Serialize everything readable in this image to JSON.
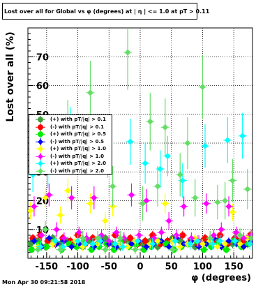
{
  "chart_data": {
    "type": "scatter",
    "title": "Lost over all for Global vs φ (degrees) at | η | <= 1.0 at pT > 0.11",
    "xlabel": "φ (degrees)",
    "ylabel": "Lost over all (%)",
    "xlim": [
      -180,
      180
    ],
    "ylim": [
      0,
      80
    ],
    "xticks": [
      -150,
      -100,
      -50,
      0,
      50,
      100,
      150
    ],
    "yticks": [
      10,
      20,
      30,
      40,
      50,
      60,
      70
    ],
    "grid": true,
    "legend_position": "left-middle",
    "series": [
      {
        "name": "(+) with pT/|q| > 0.1",
        "color": "#3e9e3e",
        "marker": "circle",
        "x": [
          -176,
          -164,
          -152,
          -140,
          -128,
          -116,
          -104,
          -92,
          -80,
          -68,
          -56,
          -44,
          -32,
          -20,
          -8,
          4,
          16,
          28,
          40,
          52,
          64,
          76,
          88,
          100,
          112,
          124,
          136,
          148,
          160,
          172
        ],
        "y": [
          5,
          6,
          4,
          7,
          5,
          6,
          5,
          4,
          6,
          5,
          7,
          5,
          4,
          6,
          5,
          5,
          6,
          4,
          5,
          7,
          6,
          5,
          4,
          6,
          5,
          6,
          4,
          5,
          6,
          5
        ],
        "err": [
          1.5,
          1.5,
          1.5,
          1.5,
          1.5,
          1.5,
          1.5,
          1.5,
          1.5,
          1.5,
          1.5,
          1.5,
          1.5,
          1.5,
          1.5,
          1.5,
          1.5,
          1.5,
          1.5,
          1.5,
          1.5,
          1.5,
          1.5,
          1.5,
          1.5,
          1.5,
          1.5,
          1.5,
          1.5,
          1.5
        ]
      },
      {
        "name": "(-) with pT/|q| > 0.1",
        "color": "#ff0000",
        "marker": "circle",
        "x": [
          -172,
          -160,
          -148,
          -136,
          -124,
          -112,
          -100,
          -88,
          -76,
          -64,
          -52,
          -40,
          -28,
          -16,
          -4,
          8,
          20,
          32,
          44,
          56,
          68,
          80,
          92,
          104,
          116,
          128,
          140,
          152,
          164,
          176
        ],
        "y": [
          7,
          8,
          6,
          5,
          7,
          6,
          8,
          5,
          7,
          6,
          5,
          8,
          6,
          7,
          5,
          6,
          8,
          5,
          6,
          7,
          8,
          6,
          5,
          7,
          6,
          8,
          5,
          7,
          6,
          8
        ],
        "err": [
          1.5,
          1.5,
          1.5,
          1.5,
          1.5,
          1.5,
          1.5,
          1.5,
          1.5,
          1.5,
          1.5,
          1.5,
          1.5,
          1.5,
          1.5,
          1.5,
          1.5,
          1.5,
          1.5,
          1.5,
          1.5,
          1.5,
          1.5,
          1.5,
          1.5,
          1.5,
          1.5,
          1.5,
          1.5,
          1.5
        ]
      },
      {
        "name": "(+) with pT/|q| > 0.5",
        "color": "#00ee00",
        "marker": "circle",
        "x": [
          -174,
          -162,
          -150,
          -138,
          -126,
          -114,
          -102,
          -90,
          -78,
          -66,
          -54,
          -42,
          -30,
          -18,
          -6,
          6,
          18,
          30,
          42,
          54,
          66,
          78,
          90,
          102,
          114,
          126,
          138,
          150,
          162,
          174
        ],
        "y": [
          3,
          5,
          4,
          6,
          3,
          5,
          4,
          6,
          3,
          4,
          5,
          3,
          6,
          4,
          5,
          3,
          4,
          6,
          5,
          3,
          4,
          5,
          6,
          3,
          4,
          5,
          3,
          6,
          4,
          5
        ],
        "err": [
          1.2,
          1.2,
          1.2,
          1.2,
          1.2,
          1.2,
          1.2,
          1.2,
          1.2,
          1.2,
          1.2,
          1.2,
          1.2,
          1.2,
          1.2,
          1.2,
          1.2,
          1.2,
          1.2,
          1.2,
          1.2,
          1.2,
          1.2,
          1.2,
          1.2,
          1.2,
          1.2,
          1.2,
          1.2,
          1.2
        ]
      },
      {
        "name": "(-) with pT/|q| > 0.5",
        "color": "#0000ff",
        "marker": "diamond",
        "x": [
          -170,
          -158,
          -146,
          -134,
          -122,
          -110,
          -98,
          -86,
          -74,
          -62,
          -50,
          -38,
          -26,
          -14,
          -2,
          10,
          22,
          34,
          46,
          58,
          70,
          82,
          94,
          106,
          118,
          130,
          142,
          154,
          166,
          178
        ],
        "y": [
          6,
          4,
          7,
          5,
          6,
          4,
          5,
          7,
          4,
          6,
          5,
          4,
          7,
          5,
          6,
          4,
          5,
          6,
          4,
          7,
          5,
          6,
          4,
          5,
          7,
          4,
          6,
          5,
          4,
          6
        ],
        "err": [
          1.2,
          1.2,
          1.2,
          1.2,
          1.2,
          1.2,
          1.2,
          1.2,
          1.2,
          1.2,
          1.2,
          1.2,
          1.2,
          1.2,
          1.2,
          1.2,
          1.2,
          1.2,
          1.2,
          1.2,
          1.2,
          1.2,
          1.2,
          1.2,
          1.2,
          1.2,
          1.2,
          1.2,
          1.2,
          1.2
        ]
      },
      {
        "name": "(+) with pT/|q| > 1.0",
        "color": "#ffff00",
        "marker": "diamond",
        "x": [
          -176,
          -164,
          -152,
          -140,
          -128,
          -116,
          -104,
          -92,
          -80,
          -68,
          -56,
          -44,
          -32,
          -20,
          -8,
          4,
          16,
          28,
          40,
          52,
          64,
          76,
          88,
          100,
          112,
          124,
          136,
          148,
          160,
          172
        ],
        "y": [
          16.5,
          4,
          21,
          5,
          15,
          23.5,
          6,
          4,
          19,
          5,
          13,
          18,
          5,
          4,
          6,
          19,
          5,
          6,
          19,
          6,
          4,
          5,
          7,
          5,
          6,
          4,
          5,
          16,
          5,
          7
        ],
        "err": [
          3,
          1.5,
          3.5,
          1.5,
          3,
          4,
          1.5,
          1.5,
          3.5,
          1.5,
          3,
          3.5,
          1.5,
          1.5,
          1.5,
          3.5,
          1.5,
          1.5,
          3.5,
          1.5,
          1.5,
          1.5,
          1.5,
          1.5,
          1.5,
          1.5,
          1.5,
          3,
          1.5,
          1.5
        ]
      },
      {
        "name": "(-) with pT/|q| > 1.0",
        "color": "#ff00ff",
        "marker": "diamond",
        "x": [
          -170,
          -158,
          -146,
          -134,
          -122,
          -110,
          -98,
          -86,
          -74,
          -62,
          -50,
          -38,
          -26,
          -14,
          -2,
          10,
          22,
          34,
          46,
          58,
          70,
          82,
          94,
          106,
          118,
          130,
          142,
          154,
          166,
          178
        ],
        "y": [
          18,
          8,
          22,
          10,
          7,
          21,
          9,
          7,
          21,
          8,
          6,
          9,
          7,
          22,
          8,
          20,
          7,
          9,
          13,
          8,
          18,
          7,
          6,
          19,
          8,
          10,
          18,
          9,
          7,
          8
        ],
        "err": [
          3.5,
          2,
          4,
          2.5,
          2,
          4,
          2,
          2,
          4,
          2,
          2,
          2,
          2,
          4,
          2,
          4,
          2,
          2,
          3,
          2,
          3.5,
          2,
          2,
          3.5,
          2,
          2.5,
          3.5,
          2,
          2,
          2
        ]
      },
      {
        "name": "(+) with pT/|q| > 2.0",
        "color": "#00ffff",
        "marker": "diamond",
        "x": [
          -172,
          -160,
          -148,
          -136,
          -124,
          -112,
          -100,
          -88,
          -76,
          -64,
          -52,
          -40,
          -28,
          -16,
          -4,
          8,
          20,
          32,
          44,
          56,
          68,
          80,
          92,
          104,
          116,
          128,
          140,
          152,
          164,
          176
        ],
        "y": [
          29,
          4,
          31,
          6,
          4,
          44.5,
          6,
          5,
          5,
          6,
          35,
          5,
          4,
          40.5,
          6,
          33,
          5,
          31,
          35.5,
          6,
          27,
          5,
          6,
          39,
          5,
          6,
          41,
          6,
          42.5,
          5
        ],
        "err": [
          6,
          1.5,
          6.5,
          2,
          1.5,
          8,
          2,
          2,
          2,
          2,
          7,
          2,
          1.5,
          8,
          2,
          7,
          2,
          6.5,
          7,
          2,
          6,
          2,
          2,
          7.5,
          2,
          2,
          8,
          2,
          8,
          2
        ]
      },
      {
        "name": "(-) with pT/|q| > 2.0",
        "color": "#66dd66",
        "marker": "diamond",
        "x": [
          -164,
          -152,
          -140,
          -128,
          -116,
          -104,
          -92,
          -80,
          -68,
          -56,
          -44,
          -32,
          -20,
          -8,
          4,
          16,
          28,
          40,
          52,
          64,
          76,
          88,
          100,
          112,
          124,
          136,
          148,
          160,
          172,
          178
        ],
        "y": [
          3,
          10,
          40,
          3,
          45,
          38,
          7,
          57.5,
          7,
          3,
          25,
          7,
          71.5,
          3,
          19,
          47.5,
          25,
          45.5,
          3,
          29,
          40,
          21,
          59.5,
          7,
          19.5,
          20,
          27,
          8,
          24,
          7
        ],
        "err": [
          1.5,
          3,
          9,
          1.5,
          10,
          9,
          2.5,
          11,
          2.5,
          1.5,
          7,
          2.5,
          13,
          1.5,
          6,
          10,
          7,
          10,
          1.5,
          7.5,
          9,
          6.5,
          11,
          2.5,
          6,
          6.5,
          7.5,
          2.5,
          7,
          2.5
        ]
      }
    ]
  },
  "timestamp": "Mon Apr 30 09:21:58 2018"
}
